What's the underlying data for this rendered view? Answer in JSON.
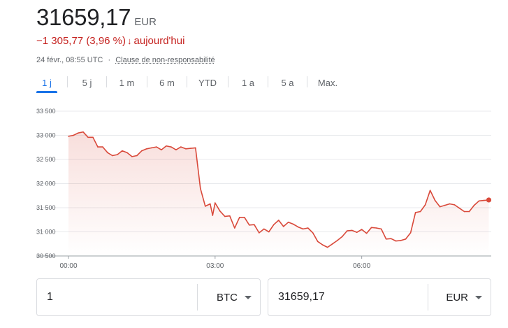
{
  "header": {
    "price": "31659,17",
    "currency": "EUR",
    "change": "−1 305,77 (3,96 %)",
    "change_arrow": "down-arrow",
    "change_period": "aujourd'hui",
    "timestamp": "24 févr., 08:55 UTC",
    "separator": "·",
    "disclaimer": "Clause de non-responsabilité"
  },
  "tabs": [
    {
      "label": "1 j",
      "active": true
    },
    {
      "label": "5 j",
      "active": false
    },
    {
      "label": "1 m",
      "active": false
    },
    {
      "label": "6 m",
      "active": false
    },
    {
      "label": "YTD",
      "active": false
    },
    {
      "label": "1 a",
      "active": false
    },
    {
      "label": "5 a",
      "active": false
    },
    {
      "label": "Max.",
      "active": false
    }
  ],
  "colors": {
    "line": "#d9493a",
    "accent": "#1a73e8",
    "negative": "#c5221f"
  },
  "chart_data": {
    "type": "area",
    "ylim": [
      30500,
      33500
    ],
    "yticks": [
      30500,
      31000,
      31500,
      32000,
      32500,
      33000,
      33500
    ],
    "ytick_labels": [
      "30 500",
      "31 000",
      "31 500",
      "32 000",
      "32 500",
      "33 000",
      "33 500"
    ],
    "xlim": [
      0,
      8.65
    ],
    "xticks": [
      0,
      3,
      6
    ],
    "xtick_labels": [
      "00:00",
      "03:00",
      "06:00"
    ],
    "grid": "horizontal",
    "x": [
      0,
      0.1,
      0.2,
      0.3,
      0.4,
      0.5,
      0.6,
      0.7,
      0.8,
      0.9,
      1.0,
      1.1,
      1.2,
      1.3,
      1.4,
      1.5,
      1.6,
      1.7,
      1.8,
      1.9,
      2.0,
      2.1,
      2.2,
      2.3,
      2.4,
      2.5,
      2.6,
      2.7,
      2.8,
      2.9,
      2.95,
      3.0,
      3.1,
      3.2,
      3.3,
      3.4,
      3.5,
      3.6,
      3.7,
      3.8,
      3.9,
      4.0,
      4.1,
      4.2,
      4.3,
      4.4,
      4.5,
      4.6,
      4.7,
      4.8,
      4.9,
      5.0,
      5.1,
      5.2,
      5.3,
      5.4,
      5.5,
      5.6,
      5.7,
      5.8,
      5.9,
      6.0,
      6.1,
      6.2,
      6.3,
      6.4,
      6.5,
      6.6,
      6.7,
      6.8,
      6.9,
      7.0,
      7.1,
      7.2,
      7.3,
      7.4,
      7.5,
      7.6,
      7.7,
      7.8,
      7.9,
      8.0,
      8.1,
      8.2,
      8.3,
      8.4,
      8.5,
      8.6
    ],
    "series": [
      {
        "values": [
          32980,
          33000,
          33050,
          33070,
          32960,
          32960,
          32760,
          32760,
          32640,
          32580,
          32600,
          32680,
          32640,
          32560,
          32580,
          32680,
          32720,
          32740,
          32760,
          32700,
          32780,
          32760,
          32700,
          32760,
          32720,
          32730,
          32740,
          31900,
          31530,
          31580,
          31340,
          31600,
          31430,
          31320,
          31330,
          31080,
          31300,
          31300,
          31140,
          31150,
          30980,
          31060,
          31000,
          31150,
          31240,
          31110,
          31200,
          31160,
          31100,
          31060,
          31080,
          30980,
          30800,
          30730,
          30680,
          30750,
          30820,
          30900,
          31020,
          31030,
          30990,
          31050,
          30970,
          31090,
          31080,
          31060,
          30850,
          30860,
          30810,
          30820,
          30850,
          30980,
          31400,
          31420,
          31560,
          31860,
          31650,
          31520,
          31550,
          31580,
          31560,
          31490,
          31420,
          31420,
          31550,
          31640,
          31650,
          31660
        ]
      }
    ]
  },
  "converter": {
    "from_value": "1",
    "from_unit": "BTC",
    "to_value": "31659,17",
    "to_unit": "EUR"
  }
}
